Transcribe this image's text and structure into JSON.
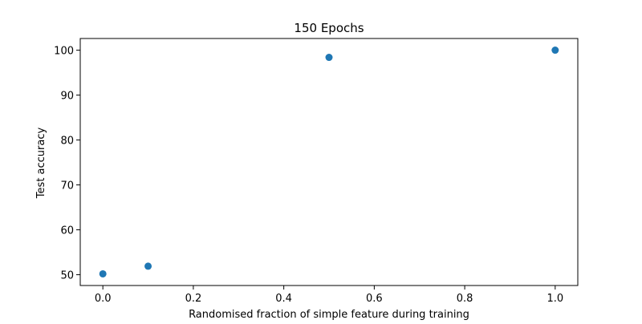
{
  "chart_data": {
    "type": "scatter",
    "title": "150 Epochs",
    "xlabel": "Randomised fraction of simple feature during training",
    "ylabel": "Test accuracy",
    "xlim": [
      -0.05,
      1.05
    ],
    "ylim": [
      47.6,
      102.6
    ],
    "xticks": [
      0.0,
      0.2,
      0.4,
      0.6,
      0.8,
      1.0
    ],
    "xtick_labels": [
      "0.0",
      "0.2",
      "0.4",
      "0.6",
      "0.8",
      "1.0"
    ],
    "yticks": [
      50,
      60,
      70,
      80,
      90,
      100
    ],
    "ytick_labels": [
      "50",
      "60",
      "70",
      "80",
      "90",
      "100"
    ],
    "grid": false,
    "legend": "none",
    "marker_color": "#1f77b4",
    "series": [
      {
        "x": [
          0.0,
          0.1,
          0.5,
          1.0
        ],
        "y": [
          50.2,
          51.9,
          98.4,
          100.0
        ]
      }
    ]
  }
}
